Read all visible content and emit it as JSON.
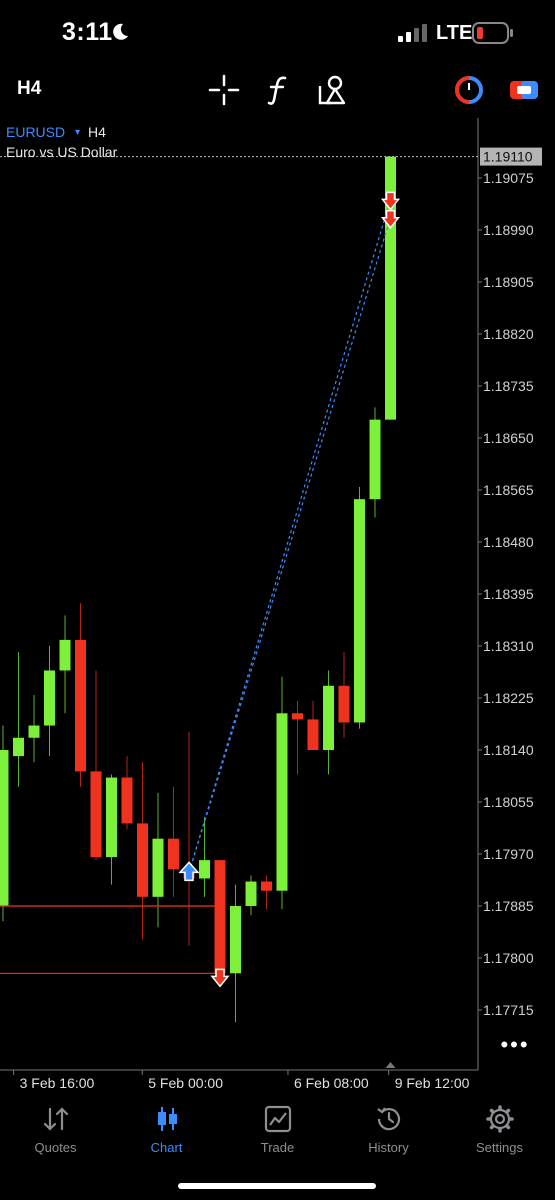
{
  "status_bar": {
    "time": "3:11",
    "network": "LTE",
    "icons": [
      "moon-icon",
      "signal-icon",
      "battery-low-icon"
    ]
  },
  "toolbar": {
    "timeframe": "H4",
    "tools": [
      "crosshair-icon",
      "indicators-icon",
      "objects-icon",
      "trade-clock-icon",
      "one-click-trading-icon"
    ]
  },
  "symbol": {
    "name": "EURUSD",
    "caret": "▾",
    "timeframe": "H4",
    "description": "Euro vs US Dollar"
  },
  "colors": {
    "bull": "#7CF03A",
    "bear": "#F0331F",
    "accent": "#3D8CFF",
    "background": "#000000"
  },
  "chart_data": {
    "type": "candlestick",
    "symbol": "EURUSD",
    "timeframe": "H4",
    "current_price": "1.19110",
    "price_ticks": [
      "1.19075",
      "1.18990",
      "1.18905",
      "1.18820",
      "1.18735",
      "1.18650",
      "1.18565",
      "1.18480",
      "1.18395",
      "1.18310",
      "1.18225",
      "1.18140",
      "1.18055",
      "1.17970",
      "1.17885",
      "1.17800",
      "1.17715"
    ],
    "time_ticks": [
      "3 Feb 16:00",
      "5 Feb 00:00",
      "6 Feb 08:00",
      "9 Feb 12:00"
    ],
    "candles": [
      {
        "o": 1.17885,
        "h": 1.1818,
        "l": 1.1786,
        "c": 1.1814
      },
      {
        "o": 1.1813,
        "h": 1.183,
        "l": 1.1808,
        "c": 1.1816
      },
      {
        "o": 1.1816,
        "h": 1.1823,
        "l": 1.1812,
        "c": 1.1818
      },
      {
        "o": 1.1818,
        "h": 1.1831,
        "l": 1.1813,
        "c": 1.1827
      },
      {
        "o": 1.1827,
        "h": 1.1836,
        "l": 1.182,
        "c": 1.1832
      },
      {
        "o": 1.1832,
        "h": 1.1838,
        "l": 1.1808,
        "c": 1.18105
      },
      {
        "o": 1.18105,
        "h": 1.1827,
        "l": 1.1796,
        "c": 1.17965
      },
      {
        "o": 1.17965,
        "h": 1.181,
        "l": 1.1792,
        "c": 1.18095
      },
      {
        "o": 1.18095,
        "h": 1.1813,
        "l": 1.1801,
        "c": 1.1802
      },
      {
        "o": 1.1802,
        "h": 1.1812,
        "l": 1.1783,
        "c": 1.179
      },
      {
        "o": 1.179,
        "h": 1.1807,
        "l": 1.1785,
        "c": 1.17995
      },
      {
        "o": 1.17995,
        "h": 1.1808,
        "l": 1.179,
        "c": 1.17945
      },
      {
        "o": 1.17945,
        "h": 1.1817,
        "l": 1.1782,
        "c": 1.1793
      },
      {
        "o": 1.1793,
        "h": 1.1803,
        "l": 1.179,
        "c": 1.1796
      },
      {
        "o": 1.1796,
        "h": 1.1796,
        "l": 1.1777,
        "c": 1.17775
      },
      {
        "o": 1.17775,
        "h": 1.1792,
        "l": 1.17695,
        "c": 1.17885
      },
      {
        "o": 1.17885,
        "h": 1.17935,
        "l": 1.1787,
        "c": 1.17925
      },
      {
        "o": 1.17925,
        "h": 1.17935,
        "l": 1.1788,
        "c": 1.1791
      },
      {
        "o": 1.1791,
        "h": 1.1826,
        "l": 1.1788,
        "c": 1.182
      },
      {
        "o": 1.182,
        "h": 1.1822,
        "l": 1.181,
        "c": 1.1819
      },
      {
        "o": 1.1819,
        "h": 1.1822,
        "l": 1.1814,
        "c": 1.1814
      },
      {
        "o": 1.1814,
        "h": 1.1827,
        "l": 1.181,
        "c": 1.18245
      },
      {
        "o": 1.18245,
        "h": 1.183,
        "l": 1.1816,
        "c": 1.18185
      },
      {
        "o": 1.18185,
        "h": 1.1857,
        "l": 1.18175,
        "c": 1.1855
      },
      {
        "o": 1.1855,
        "h": 1.187,
        "l": 1.1852,
        "c": 1.1868
      },
      {
        "o": 1.1868,
        "h": 1.1911,
        "l": 1.1868,
        "c": 1.1911
      }
    ],
    "trade_lines": [
      1.17885,
      1.17775
    ],
    "trade_markers": [
      {
        "candle": 12,
        "price": 1.1794,
        "side": "buy"
      },
      {
        "candle": 14,
        "price": 1.1777,
        "side": "sell"
      },
      {
        "candle": 25,
        "price": 1.1904,
        "side": "sell"
      },
      {
        "candle": 25,
        "price": 1.1901,
        "side": "sell"
      }
    ],
    "trade_links": [
      [
        0,
        2
      ],
      [
        0,
        3
      ]
    ]
  },
  "more_label": "•••",
  "nav": [
    {
      "label": "Quotes",
      "icon": "quotes-icon",
      "active": false
    },
    {
      "label": "Chart",
      "icon": "chart-icon",
      "active": true
    },
    {
      "label": "Trade",
      "icon": "trade-icon",
      "active": false
    },
    {
      "label": "History",
      "icon": "history-icon",
      "active": false
    },
    {
      "label": "Settings",
      "icon": "settings-icon",
      "active": false
    }
  ]
}
